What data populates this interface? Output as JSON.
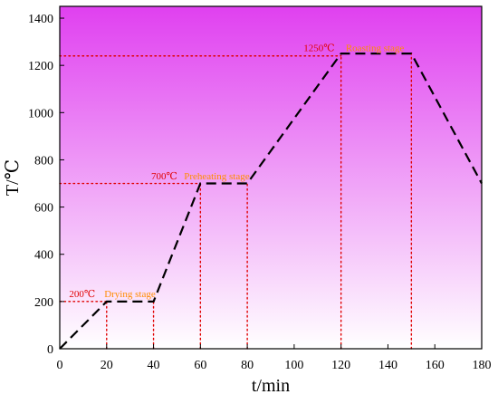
{
  "chart_data": {
    "type": "line",
    "title": "",
    "xlabel": "t/min",
    "ylabel": "T/℃",
    "xlim": [
      0,
      180
    ],
    "ylim": [
      0,
      1450
    ],
    "x_ticks": [
      0,
      20,
      40,
      60,
      80,
      100,
      120,
      140,
      160,
      180
    ],
    "y_ticks": [
      0,
      200,
      400,
      600,
      800,
      1000,
      1200,
      1400
    ],
    "grid": false,
    "legend": "none",
    "background_gradient": {
      "top_color": "#e040f0",
      "bottom_color": "#ffffff"
    },
    "series": [
      {
        "style": "dashed",
        "color": "#000000",
        "points": [
          [
            0,
            0
          ],
          [
            20,
            200
          ],
          [
            40,
            200
          ],
          [
            60,
            700
          ],
          [
            80,
            700
          ],
          [
            120,
            1250
          ],
          [
            150,
            1250
          ],
          [
            180,
            700
          ]
        ]
      }
    ],
    "reference_lines": {
      "color": "#e00000",
      "style": "dotted",
      "horizontal": [
        {
          "y": 200,
          "x_from": 0,
          "x_to": 20
        },
        {
          "y": 700,
          "x_from": 0,
          "x_to": 60
        },
        {
          "y": 1240,
          "x_from": 0,
          "x_to": 120
        }
      ],
      "vertical": [
        {
          "x": 20,
          "y_to": 200
        },
        {
          "x": 40,
          "y_to": 200
        },
        {
          "x": 60,
          "y_to": 700
        },
        {
          "x": 80,
          "y_to": 700
        },
        {
          "x": 120,
          "y_to": 1250
        },
        {
          "x": 150,
          "y_to": 1250
        }
      ]
    },
    "annotations": [
      {
        "text": "200℃",
        "x": 4,
        "y": 218,
        "kind": "temperature"
      },
      {
        "text": "Drying stage",
        "x": 19,
        "y": 218,
        "kind": "stage"
      },
      {
        "text": "700℃",
        "x": 39,
        "y": 718,
        "kind": "temperature"
      },
      {
        "text": "Preheating stage",
        "x": 53,
        "y": 718,
        "kind": "stage"
      },
      {
        "text": "1250℃",
        "x": 104,
        "y": 1260,
        "kind": "temperature"
      },
      {
        "text": "Roasting stage",
        "x": 122,
        "y": 1260,
        "kind": "stage"
      }
    ],
    "colors": {
      "temperature_label": "#e00000",
      "stage_label": "#ff8c00"
    }
  }
}
